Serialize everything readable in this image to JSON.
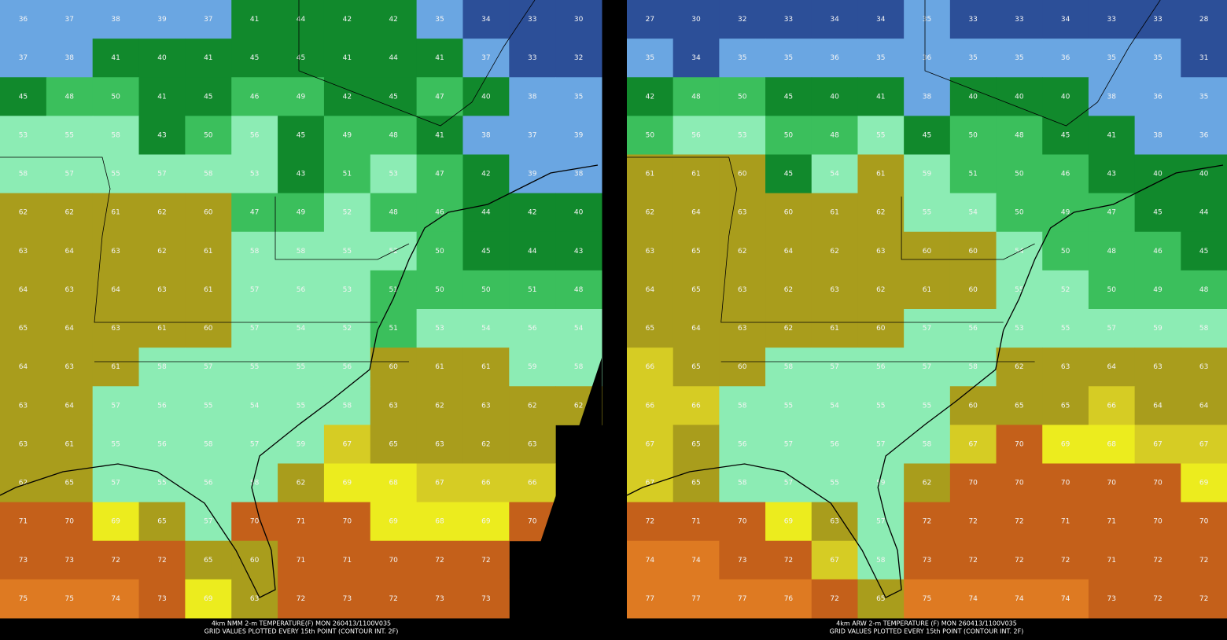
{
  "panels": [
    {
      "caption_line1": "4km NMM 2-m TEMPERATURE(F) MON 260413/1100V035",
      "caption_line2": "GRID VALUES PLOTTED EVERY 15th POINT (CONTOUR INT. 2F)",
      "grid": [
        [
          36,
          37,
          38,
          39,
          37,
          41,
          44,
          42,
          42,
          35,
          34,
          33,
          30
        ],
        [
          37,
          38,
          41,
          40,
          41,
          45,
          45,
          41,
          44,
          41,
          37,
          33,
          32
        ],
        [
          45,
          48,
          50,
          41,
          45,
          46,
          49,
          42,
          45,
          47,
          40,
          38,
          35
        ],
        [
          53,
          55,
          58,
          43,
          50,
          56,
          45,
          49,
          48,
          41,
          38,
          37,
          39
        ],
        [
          58,
          57,
          55,
          57,
          58,
          53,
          43,
          51,
          53,
          47,
          42,
          39,
          38
        ],
        [
          62,
          62,
          61,
          62,
          60,
          47,
          49,
          52,
          48,
          46,
          44,
          42,
          40
        ],
        [
          63,
          64,
          63,
          62,
          61,
          58,
          58,
          55,
          52,
          50,
          45,
          44,
          43
        ],
        [
          64,
          63,
          64,
          63,
          61,
          57,
          56,
          53,
          51,
          50,
          50,
          51,
          48
        ],
        [
          65,
          64,
          63,
          61,
          60,
          57,
          54,
          52,
          51,
          53,
          54,
          56,
          54
        ],
        [
          64,
          63,
          61,
          58,
          57,
          55,
          55,
          56,
          60,
          61,
          61,
          59,
          58
        ],
        [
          63,
          64,
          57,
          56,
          55,
          54,
          55,
          58,
          63,
          62,
          63,
          62,
          62
        ],
        [
          63,
          61,
          55,
          56,
          58,
          57,
          59,
          67,
          65,
          63,
          62,
          63,
          null
        ],
        [
          62,
          65,
          57,
          55,
          56,
          58,
          62,
          69,
          68,
          67,
          66,
          66,
          null
        ],
        [
          71,
          70,
          69,
          65,
          57,
          70,
          71,
          70,
          69,
          68,
          69,
          70,
          null
        ],
        [
          73,
          73,
          72,
          72,
          65,
          60,
          71,
          71,
          70,
          72,
          72,
          null,
          null
        ],
        [
          75,
          75,
          74,
          73,
          69,
          63,
          72,
          73,
          72,
          73,
          73,
          null,
          null
        ]
      ]
    },
    {
      "caption_line1": "4km ARW 2-m TEMPERATURE (F) MON 260413/1100V035",
      "caption_line2": "GRID VALUES PLOTTED EVERY 15th POINT (CONTOUR INT. 2F)",
      "grid": [
        [
          27,
          30,
          32,
          33,
          34,
          34,
          35,
          33,
          33,
          34,
          33,
          33,
          28
        ],
        [
          35,
          34,
          35,
          35,
          36,
          35,
          36,
          35,
          35,
          36,
          35,
          35,
          31
        ],
        [
          42,
          48,
          50,
          45,
          40,
          41,
          38,
          40,
          40,
          40,
          38,
          36,
          35
        ],
        [
          50,
          56,
          53,
          50,
          48,
          55,
          45,
          50,
          48,
          45,
          41,
          38,
          36
        ],
        [
          61,
          61,
          60,
          45,
          54,
          61,
          59,
          51,
          50,
          46,
          43,
          40,
          40
        ],
        [
          62,
          64,
          63,
          60,
          61,
          62,
          55,
          54,
          50,
          49,
          47,
          45,
          44
        ],
        [
          63,
          65,
          62,
          64,
          62,
          63,
          60,
          60,
          54,
          50,
          48,
          46,
          45
        ],
        [
          64,
          65,
          63,
          62,
          63,
          62,
          61,
          60,
          55,
          52,
          50,
          49,
          48
        ],
        [
          65,
          64,
          63,
          62,
          61,
          60,
          57,
          56,
          53,
          55,
          57,
          59,
          58
        ],
        [
          66,
          65,
          60,
          58,
          57,
          56,
          57,
          58,
          62,
          63,
          64,
          63,
          63
        ],
        [
          66,
          66,
          58,
          55,
          54,
          55,
          55,
          60,
          65,
          65,
          66,
          64,
          64
        ],
        [
          67,
          65,
          56,
          57,
          56,
          57,
          58,
          67,
          70,
          69,
          68,
          67,
          67
        ],
        [
          67,
          65,
          58,
          57,
          55,
          59,
          62,
          70,
          70,
          70,
          70,
          70,
          69
        ],
        [
          72,
          71,
          70,
          69,
          63,
          57,
          72,
          72,
          72,
          71,
          71,
          70,
          70
        ],
        [
          74,
          74,
          73,
          72,
          67,
          58,
          73,
          72,
          72,
          72,
          71,
          72,
          72
        ],
        [
          77,
          77,
          77,
          76,
          72,
          65,
          75,
          74,
          74,
          74,
          73,
          72,
          72
        ]
      ]
    }
  ]
}
